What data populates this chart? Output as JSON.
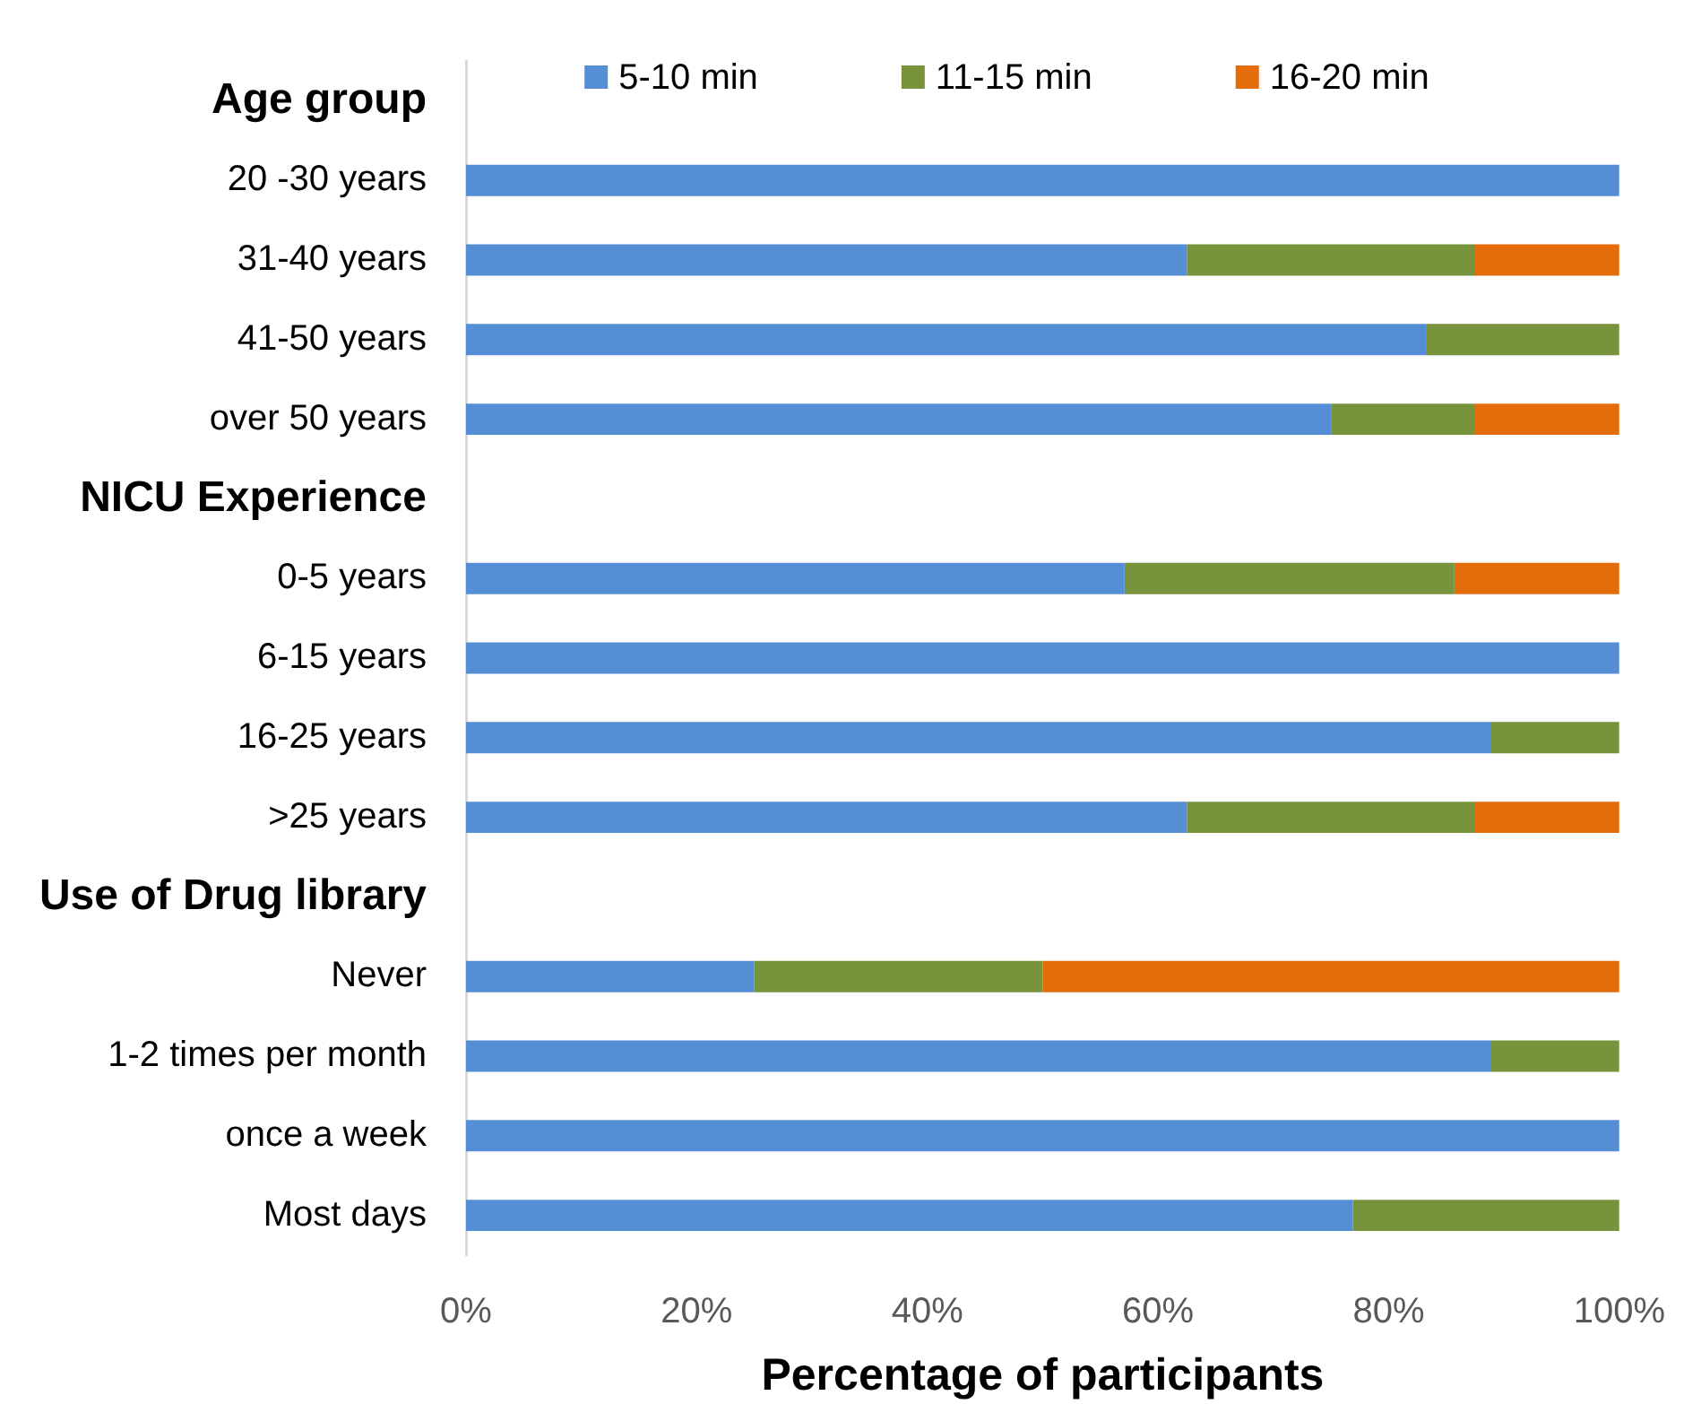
{
  "chart_data": {
    "type": "bar",
    "orientation": "horizontal",
    "stacked": true,
    "categories": [
      "Age group",
      "20 -30 years",
      "31-40 years",
      "41-50 years",
      "over 50 years",
      "NICU Experience",
      "0-5 years",
      "6-15 years",
      "16-25 years",
      ">25 years",
      "Use of Drug library",
      "Never",
      "1-2 times per month",
      "once a week",
      "Most days"
    ],
    "series": [
      {
        "name": "5-10 min",
        "color": "#558ed5",
        "values": [
          null,
          100,
          62.5,
          83.3,
          75,
          null,
          57.1,
          100,
          88.9,
          62.5,
          null,
          25,
          88.9,
          100,
          76.9
        ]
      },
      {
        "name": "11-15 min",
        "color": "#77933c",
        "values": [
          null,
          0,
          25,
          16.7,
          12.5,
          null,
          28.6,
          0,
          11.1,
          25,
          null,
          25,
          11.1,
          0,
          23.1
        ]
      },
      {
        "name": "16-20 min",
        "color": "#e46c0a",
        "values": [
          null,
          0,
          12.5,
          0,
          12.5,
          null,
          14.3,
          0,
          0,
          12.5,
          null,
          50,
          0,
          0,
          0
        ]
      }
    ],
    "xlabel": "Percentage of participants",
    "xlim": [
      0,
      100
    ],
    "xticks": [
      {
        "value": 0,
        "label": "0%"
      },
      {
        "value": 20,
        "label": "20%"
      },
      {
        "value": 40,
        "label": "40%"
      },
      {
        "value": 60,
        "label": "60%"
      },
      {
        "value": 80,
        "label": "80%"
      },
      {
        "value": 100,
        "label": "100%"
      }
    ],
    "grid": false,
    "legend": "top"
  }
}
